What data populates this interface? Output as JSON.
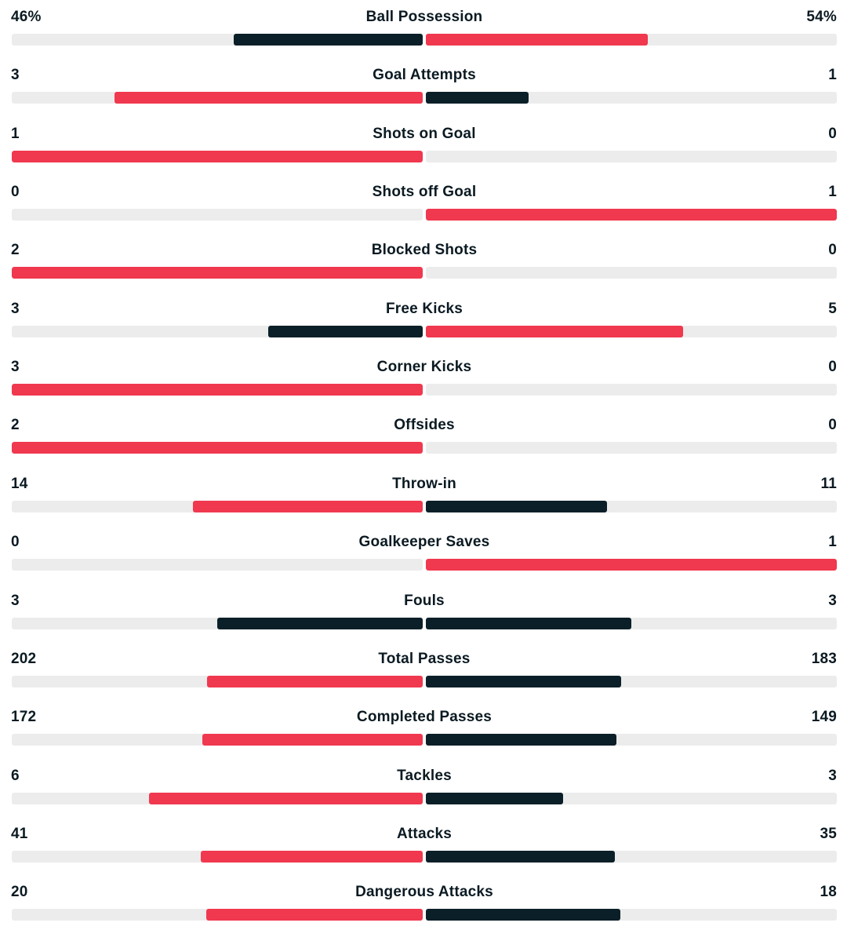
{
  "colors": {
    "leader": "#f0384f",
    "trailer": "#0b1f28",
    "track": "#ececec"
  },
  "stats": [
    {
      "label": "Ball Possession",
      "home": "46%",
      "away": "54%",
      "home_share": 0.46,
      "away_share": 0.54,
      "home_color": "trailer",
      "away_color": "leader"
    },
    {
      "label": "Goal Attempts",
      "home": "3",
      "away": "1",
      "home_share": 0.75,
      "away_share": 0.25,
      "home_color": "leader",
      "away_color": "trailer"
    },
    {
      "label": "Shots on Goal",
      "home": "1",
      "away": "0",
      "home_share": 1.0,
      "away_share": 0.0,
      "home_color": "leader",
      "away_color": "trailer"
    },
    {
      "label": "Shots off Goal",
      "home": "0",
      "away": "1",
      "home_share": 0.0,
      "away_share": 1.0,
      "home_color": "trailer",
      "away_color": "leader"
    },
    {
      "label": "Blocked Shots",
      "home": "2",
      "away": "0",
      "home_share": 1.0,
      "away_share": 0.0,
      "home_color": "leader",
      "away_color": "trailer"
    },
    {
      "label": "Free Kicks",
      "home": "3",
      "away": "5",
      "home_share": 0.375,
      "away_share": 0.625,
      "home_color": "trailer",
      "away_color": "leader"
    },
    {
      "label": "Corner Kicks",
      "home": "3",
      "away": "0",
      "home_share": 1.0,
      "away_share": 0.0,
      "home_color": "leader",
      "away_color": "trailer"
    },
    {
      "label": "Offsides",
      "home": "2",
      "away": "0",
      "home_share": 1.0,
      "away_share": 0.0,
      "home_color": "leader",
      "away_color": "trailer"
    },
    {
      "label": "Throw-in",
      "home": "14",
      "away": "11",
      "home_share": 0.56,
      "away_share": 0.44,
      "home_color": "leader",
      "away_color": "trailer"
    },
    {
      "label": "Goalkeeper Saves",
      "home": "0",
      "away": "1",
      "home_share": 0.0,
      "away_share": 1.0,
      "home_color": "trailer",
      "away_color": "leader"
    },
    {
      "label": "Fouls",
      "home": "3",
      "away": "3",
      "home_share": 0.5,
      "away_share": 0.5,
      "home_color": "trailer",
      "away_color": "trailer"
    },
    {
      "label": "Total Passes",
      "home": "202",
      "away": "183",
      "home_share": 0.5247,
      "away_share": 0.4753,
      "home_color": "leader",
      "away_color": "trailer"
    },
    {
      "label": "Completed Passes",
      "home": "172",
      "away": "149",
      "home_share": 0.5358,
      "away_share": 0.4642,
      "home_color": "leader",
      "away_color": "trailer"
    },
    {
      "label": "Tackles",
      "home": "6",
      "away": "3",
      "home_share": 0.6667,
      "away_share": 0.3333,
      "home_color": "leader",
      "away_color": "trailer"
    },
    {
      "label": "Attacks",
      "home": "41",
      "away": "35",
      "home_share": 0.5395,
      "away_share": 0.4605,
      "home_color": "leader",
      "away_color": "trailer"
    },
    {
      "label": "Dangerous Attacks",
      "home": "20",
      "away": "18",
      "home_share": 0.5263,
      "away_share": 0.4737,
      "home_color": "leader",
      "away_color": "trailer"
    }
  ]
}
